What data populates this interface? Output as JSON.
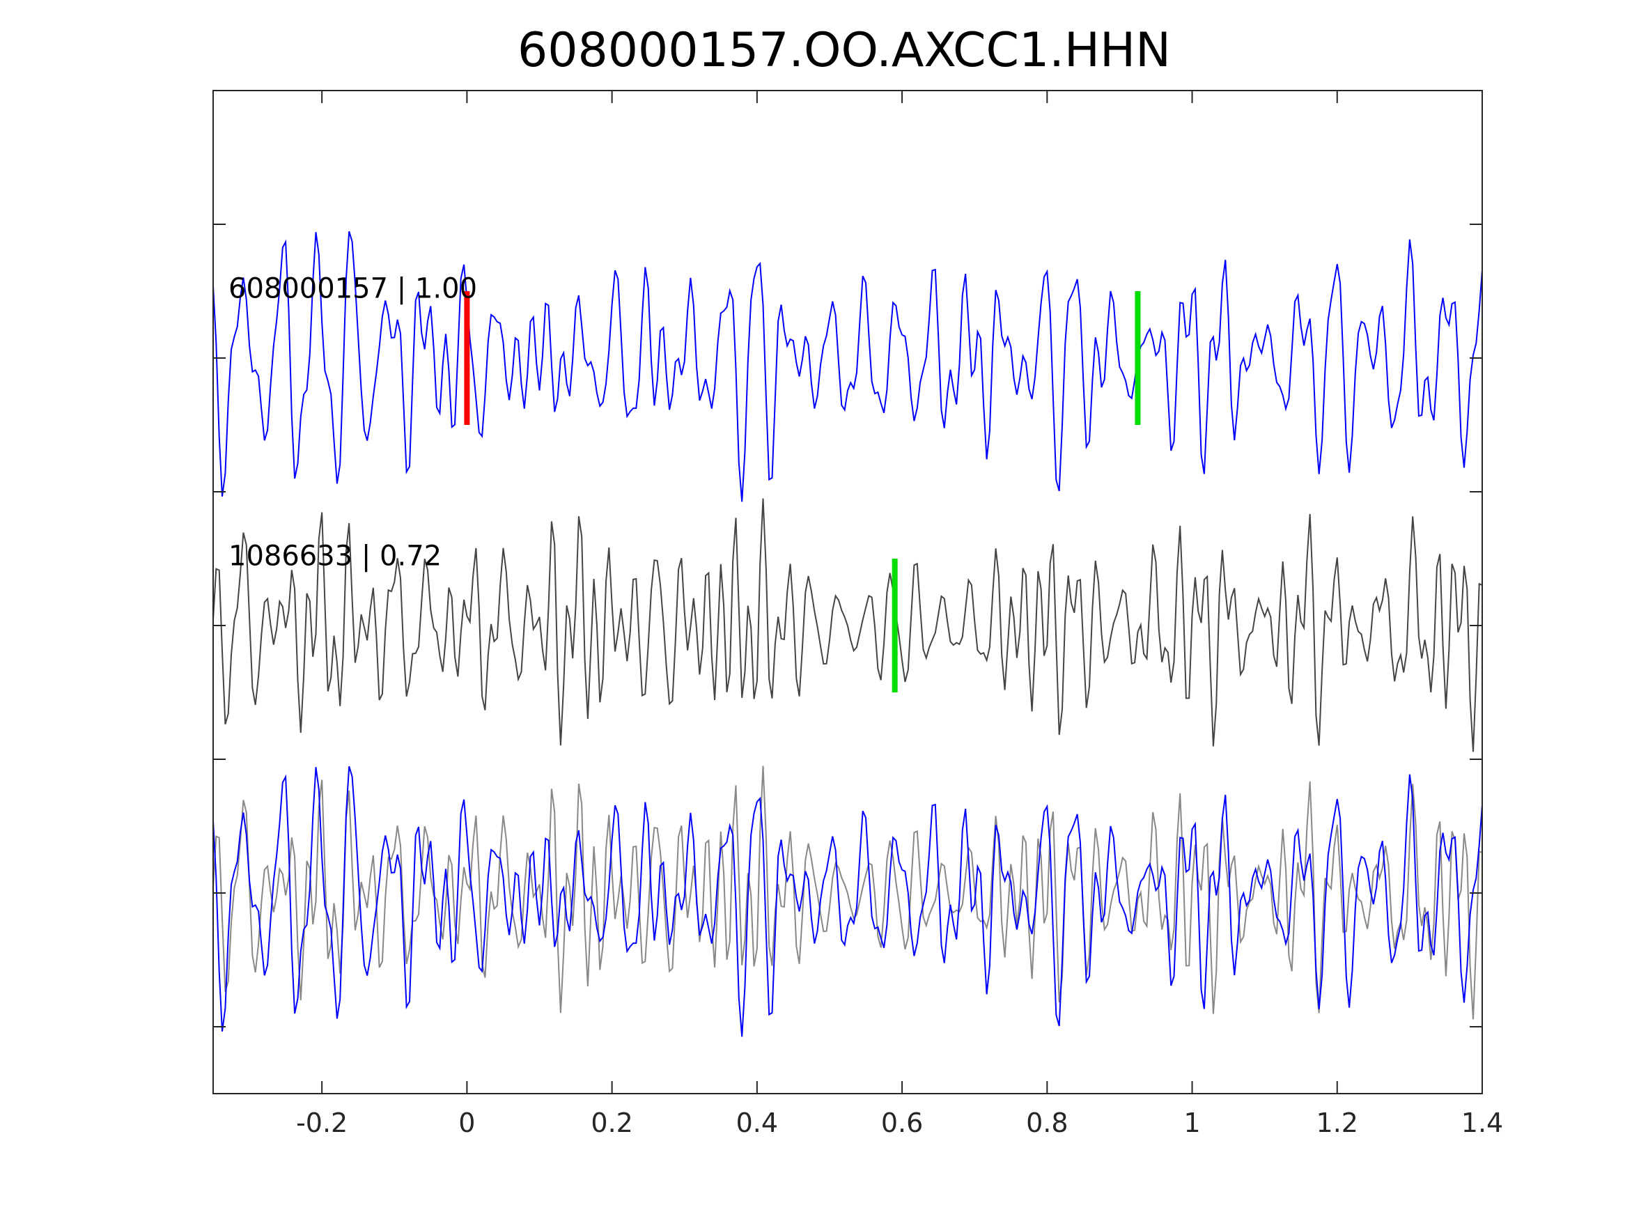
{
  "chart_data": {
    "type": "line",
    "title": "608000157.OO.AXCC1.HHN",
    "xlabel": "",
    "ylabel": "",
    "xlim": [
      -0.35,
      1.4
    ],
    "x_ticks": [
      -0.2,
      0,
      0.2,
      0.4,
      0.6,
      0.8,
      1,
      1.2,
      1.4
    ],
    "x_tick_labels": [
      "-0.2",
      "0",
      "0.2",
      "0.4",
      "0.6",
      "0.8",
      "1",
      "1.2",
      "1.4"
    ],
    "y_tick_count": 7,
    "grid": false,
    "colors": {
      "reference": "#0000ff",
      "template": "#444444",
      "overlay_template": "#888888",
      "pick_p": "#ff0000",
      "pick_s": "#00dd00"
    },
    "traces": [
      {
        "label": "608000157 | 1.00",
        "color": "#0000ff",
        "offset": 2,
        "seed": 11,
        "picks": [
          {
            "phase": "P",
            "time": 0.0,
            "color": "#ff0000"
          },
          {
            "phase": "S",
            "time": 0.925,
            "color": "#00dd00"
          }
        ]
      },
      {
        "label": "1086633 | 0.72",
        "color": "#444444",
        "offset": 0,
        "seed": 29,
        "picks": [
          {
            "phase": "S",
            "time": 0.59,
            "color": "#00dd00"
          }
        ]
      }
    ],
    "overlay": {
      "offset": -2
    }
  }
}
